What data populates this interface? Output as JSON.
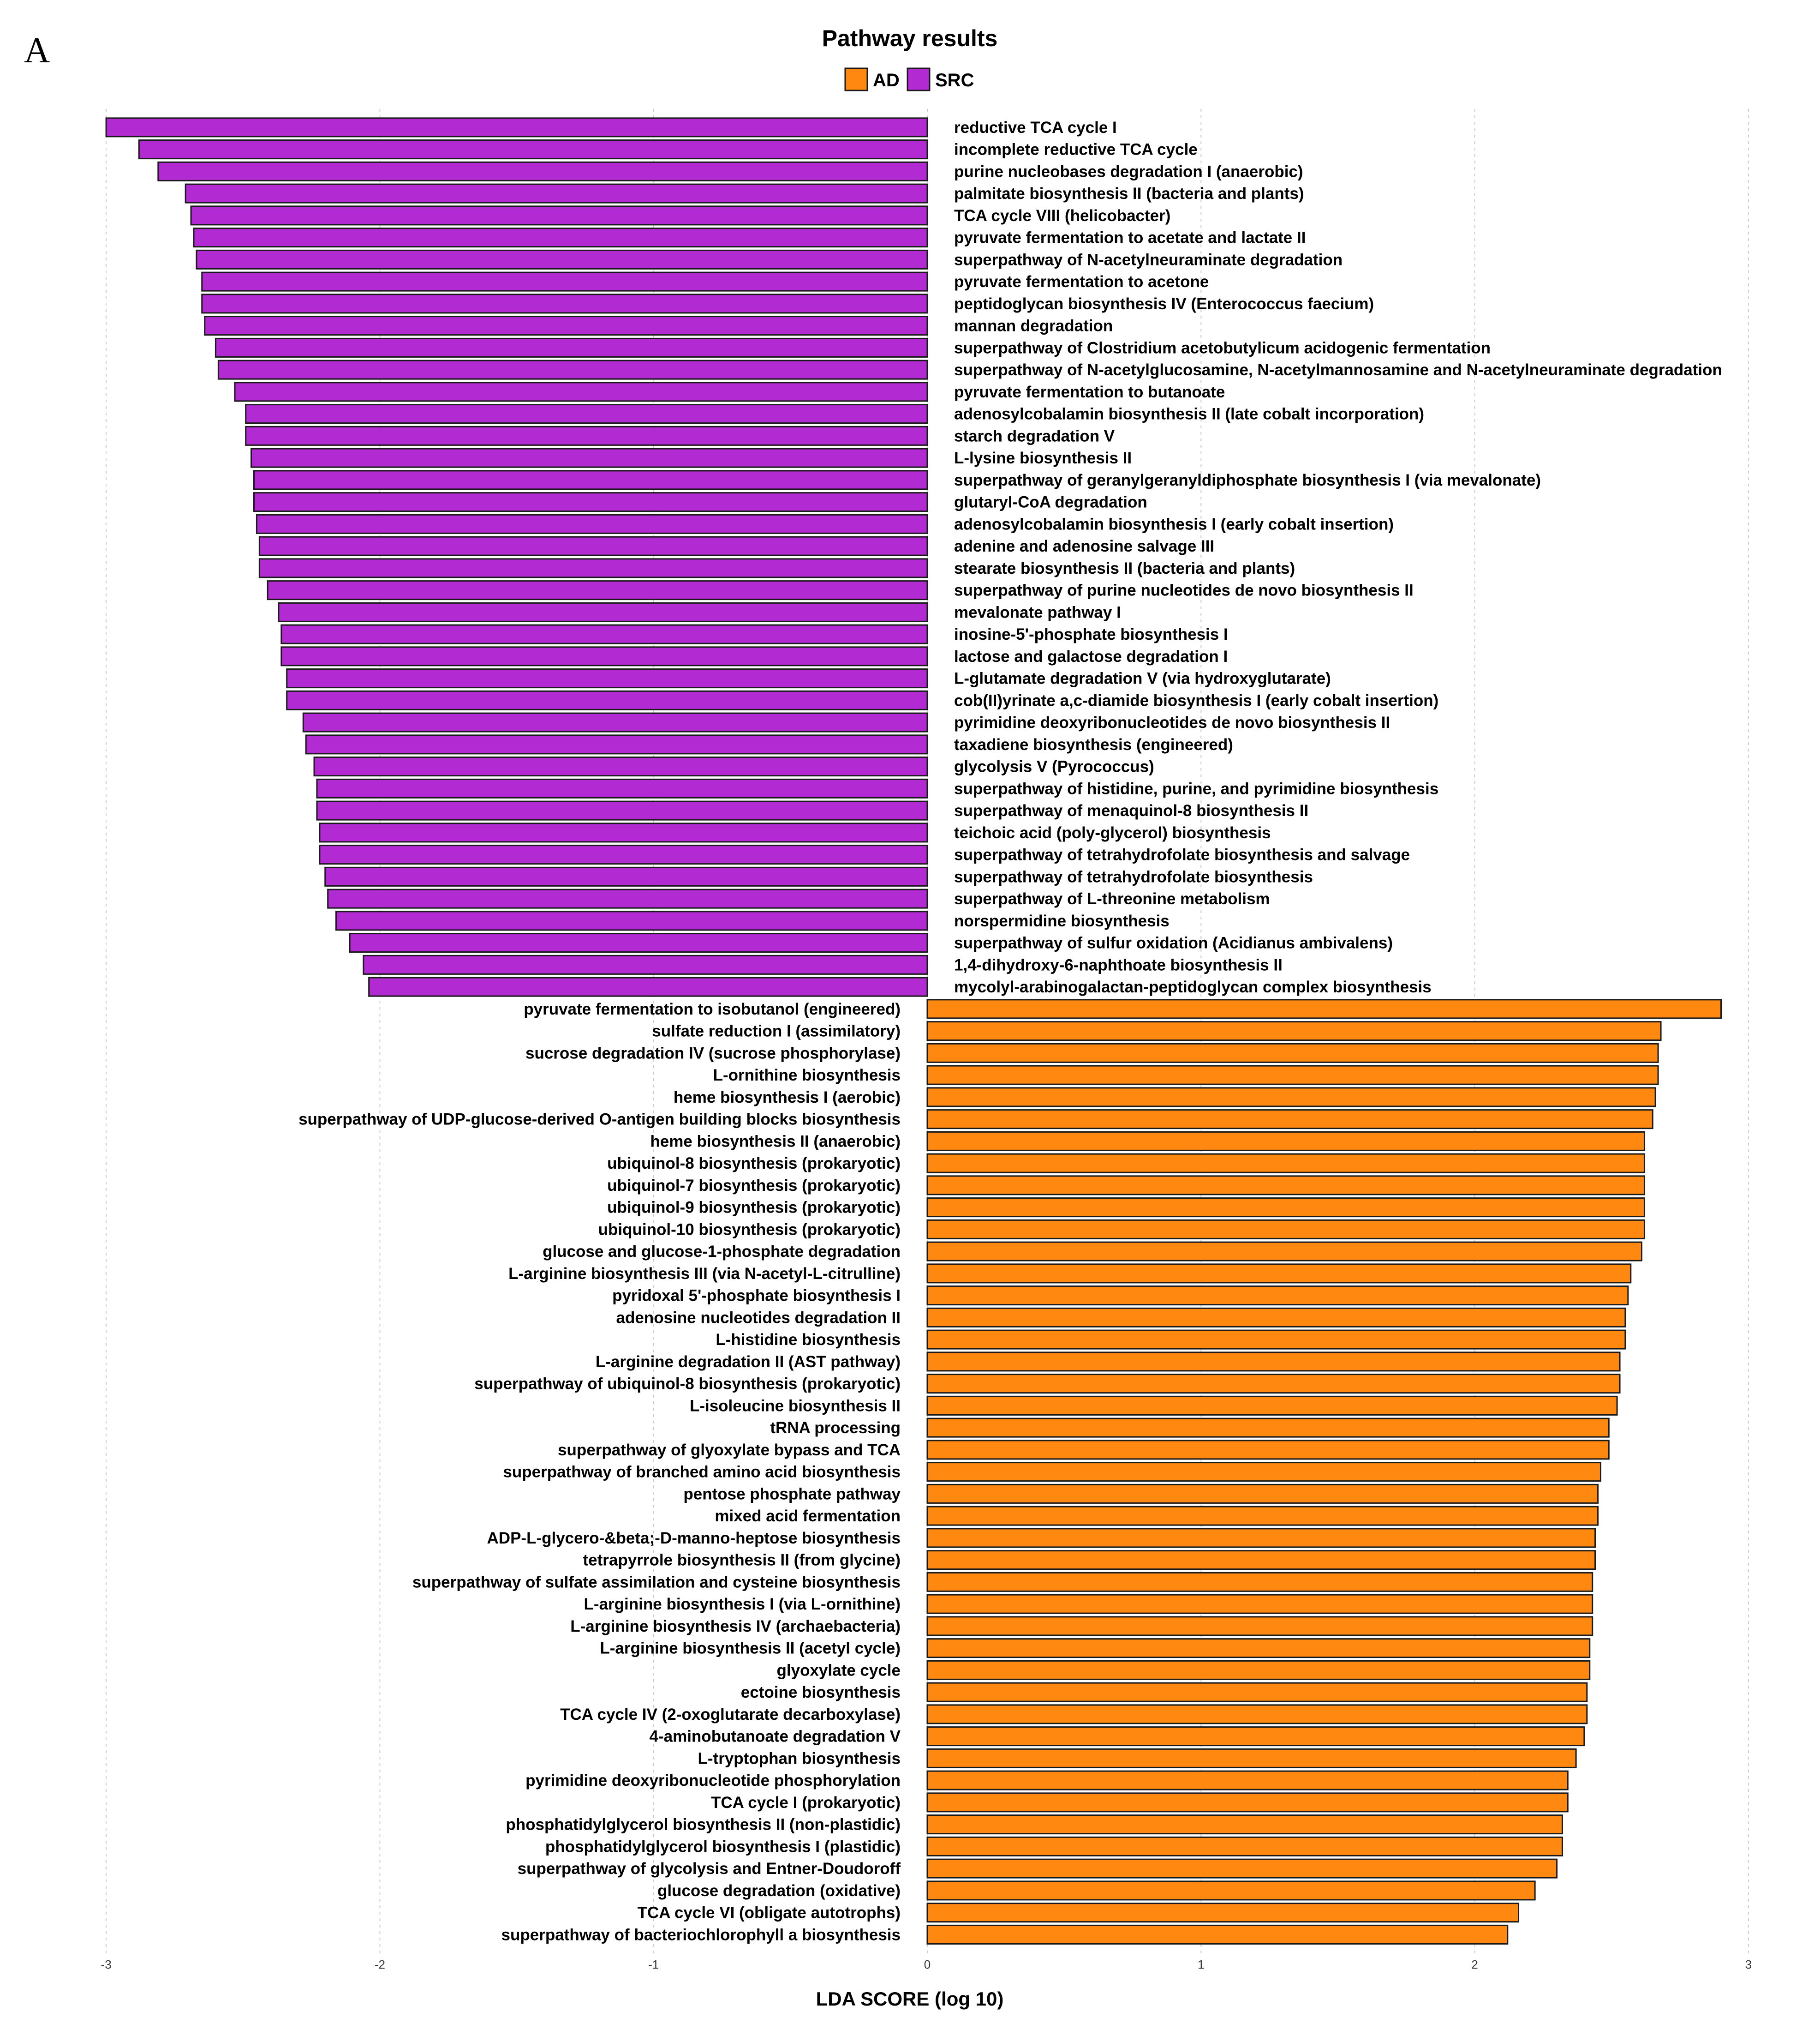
{
  "panel_label": "A",
  "colors": {
    "AD": "#ff8811",
    "SRC": "#b22ad2",
    "edge": "#1a1a1a",
    "grid": "#cccccc"
  },
  "chart_data": {
    "type": "bar",
    "orientation": "horizontal",
    "title": "Pathway results",
    "xlabel": "LDA SCORE (log 10)",
    "ylabel": "",
    "xlim": [
      -3,
      3
    ],
    "xticks": [
      "-3",
      "-2",
      "-1",
      "0",
      "1",
      "2",
      "3"
    ],
    "grid": true,
    "legend": {
      "position": "top-center",
      "entries": [
        "AD",
        "SRC"
      ]
    },
    "categories": [
      "reductive TCA cycle I",
      "incomplete reductive TCA cycle",
      "purine nucleobases degradation I (anaerobic)",
      "palmitate biosynthesis II (bacteria and plants)",
      "TCA cycle VIII (helicobacter)",
      "pyruvate fermentation to acetate and lactate II",
      "superpathway of N-acetylneuraminate degradation",
      "pyruvate fermentation to acetone",
      "peptidoglycan biosynthesis IV (Enterococcus faecium)",
      "mannan degradation",
      "superpathway of Clostridium acetobutylicum acidogenic fermentation",
      "superpathway of N-acetylglucosamine, N-acetylmannosamine and N-acetylneuraminate degradation",
      "pyruvate fermentation to butanoate",
      "adenosylcobalamin biosynthesis II (late cobalt incorporation)",
      "starch degradation V",
      "L-lysine biosynthesis II",
      "superpathway of geranylgeranyldiphosphate biosynthesis I (via mevalonate)",
      "glutaryl-CoA degradation",
      "adenosylcobalamin biosynthesis I (early cobalt insertion)",
      "adenine and adenosine salvage III",
      "stearate biosynthesis II (bacteria and plants)",
      "superpathway of purine nucleotides de novo biosynthesis II",
      "mevalonate pathway I",
      "inosine-5'-phosphate biosynthesis I",
      "lactose and galactose degradation I",
      "L-glutamate degradation V (via hydroxyglutarate)",
      "cob(II)yrinate a,c-diamide biosynthesis I (early cobalt insertion)",
      "pyrimidine deoxyribonucleotides de novo biosynthesis II",
      "taxadiene biosynthesis (engineered)",
      "glycolysis V (Pyrococcus)",
      "superpathway of histidine, purine, and pyrimidine biosynthesis",
      "superpathway of menaquinol-8 biosynthesis II",
      "teichoic acid (poly-glycerol) biosynthesis",
      "superpathway of tetrahydrofolate biosynthesis and salvage",
      "superpathway of tetrahydrofolate biosynthesis",
      "superpathway of L-threonine metabolism",
      "norspermidine biosynthesis",
      "superpathway of sulfur oxidation (Acidianus ambivalens)",
      "1,4-dihydroxy-6-naphthoate biosynthesis II",
      "mycolyl-arabinogalactan-peptidoglycan complex biosynthesis",
      "pyruvate fermentation to isobutanol (engineered)",
      "sulfate reduction I (assimilatory)",
      "sucrose degradation IV (sucrose phosphorylase)",
      "L-ornithine biosynthesis",
      "heme biosynthesis I (aerobic)",
      "superpathway of UDP-glucose-derived O-antigen building blocks biosynthesis",
      "heme biosynthesis II (anaerobic)",
      "ubiquinol-8 biosynthesis (prokaryotic)",
      "ubiquinol-7 biosynthesis (prokaryotic)",
      "ubiquinol-9 biosynthesis (prokaryotic)",
      "ubiquinol-10 biosynthesis (prokaryotic)",
      "glucose and glucose-1-phosphate degradation",
      "L-arginine biosynthesis III (via N-acetyl-L-citrulline)",
      "pyridoxal 5'-phosphate biosynthesis I",
      "adenosine nucleotides degradation II",
      "L-histidine biosynthesis",
      "L-arginine degradation II (AST pathway)",
      "superpathway of ubiquinol-8 biosynthesis (prokaryotic)",
      "L-isoleucine biosynthesis II",
      "tRNA processing",
      "superpathway of glyoxylate bypass and TCA",
      "superpathway of branched amino acid biosynthesis",
      "pentose phosphate pathway",
      "mixed acid fermentation",
      "ADP-L-glycero-&beta;-D-manno-heptose biosynthesis",
      "tetrapyrrole biosynthesis II (from glycine)",
      "superpathway of sulfate assimilation and cysteine biosynthesis",
      "L-arginine biosynthesis I (via L-ornithine)",
      "L-arginine biosynthesis IV (archaebacteria)",
      "L-arginine biosynthesis II (acetyl cycle)",
      "glyoxylate cycle",
      "ectoine biosynthesis",
      "TCA cycle IV (2-oxoglutarate decarboxylase)",
      "4-aminobutanoate degradation V",
      "L-tryptophan biosynthesis",
      "pyrimidine deoxyribonucleotide phosphorylation",
      "TCA cycle I (prokaryotic)",
      "phosphatidylglycerol biosynthesis II (non-plastidic)",
      "phosphatidylglycerol biosynthesis I (plastidic)",
      "superpathway of glycolysis and Entner-Doudoroff",
      "glucose degradation (oxidative)",
      "TCA cycle VI (obligate autotrophs)",
      "superpathway of bacteriochlorophyll a biosynthesis"
    ],
    "values": [
      -3.0,
      -2.88,
      -2.81,
      -2.71,
      -2.69,
      -2.68,
      -2.67,
      -2.65,
      -2.65,
      -2.64,
      -2.6,
      -2.59,
      -2.53,
      -2.49,
      -2.49,
      -2.47,
      -2.46,
      -2.46,
      -2.45,
      -2.44,
      -2.44,
      -2.41,
      -2.37,
      -2.36,
      -2.36,
      -2.34,
      -2.34,
      -2.28,
      -2.27,
      -2.24,
      -2.23,
      -2.23,
      -2.22,
      -2.22,
      -2.2,
      -2.19,
      -2.16,
      -2.11,
      -2.06,
      -2.04,
      2.9,
      2.68,
      2.67,
      2.67,
      2.66,
      2.65,
      2.62,
      2.62,
      2.62,
      2.62,
      2.62,
      2.61,
      2.57,
      2.56,
      2.55,
      2.55,
      2.53,
      2.53,
      2.52,
      2.49,
      2.49,
      2.46,
      2.45,
      2.45,
      2.44,
      2.44,
      2.43,
      2.43,
      2.43,
      2.42,
      2.42,
      2.41,
      2.41,
      2.4,
      2.37,
      2.34,
      2.34,
      2.32,
      2.32,
      2.3,
      2.22,
      2.16,
      2.12
    ],
    "groups": [
      "SRC",
      "SRC",
      "SRC",
      "SRC",
      "SRC",
      "SRC",
      "SRC",
      "SRC",
      "SRC",
      "SRC",
      "SRC",
      "SRC",
      "SRC",
      "SRC",
      "SRC",
      "SRC",
      "SRC",
      "SRC",
      "SRC",
      "SRC",
      "SRC",
      "SRC",
      "SRC",
      "SRC",
      "SRC",
      "SRC",
      "SRC",
      "SRC",
      "SRC",
      "SRC",
      "SRC",
      "SRC",
      "SRC",
      "SRC",
      "SRC",
      "SRC",
      "SRC",
      "SRC",
      "SRC",
      "SRC",
      "AD",
      "AD",
      "AD",
      "AD",
      "AD",
      "AD",
      "AD",
      "AD",
      "AD",
      "AD",
      "AD",
      "AD",
      "AD",
      "AD",
      "AD",
      "AD",
      "AD",
      "AD",
      "AD",
      "AD",
      "AD",
      "AD",
      "AD",
      "AD",
      "AD",
      "AD",
      "AD",
      "AD",
      "AD",
      "AD",
      "AD",
      "AD",
      "AD",
      "AD",
      "AD",
      "AD",
      "AD",
      "AD",
      "AD",
      "AD",
      "AD",
      "AD",
      "AD"
    ]
  }
}
